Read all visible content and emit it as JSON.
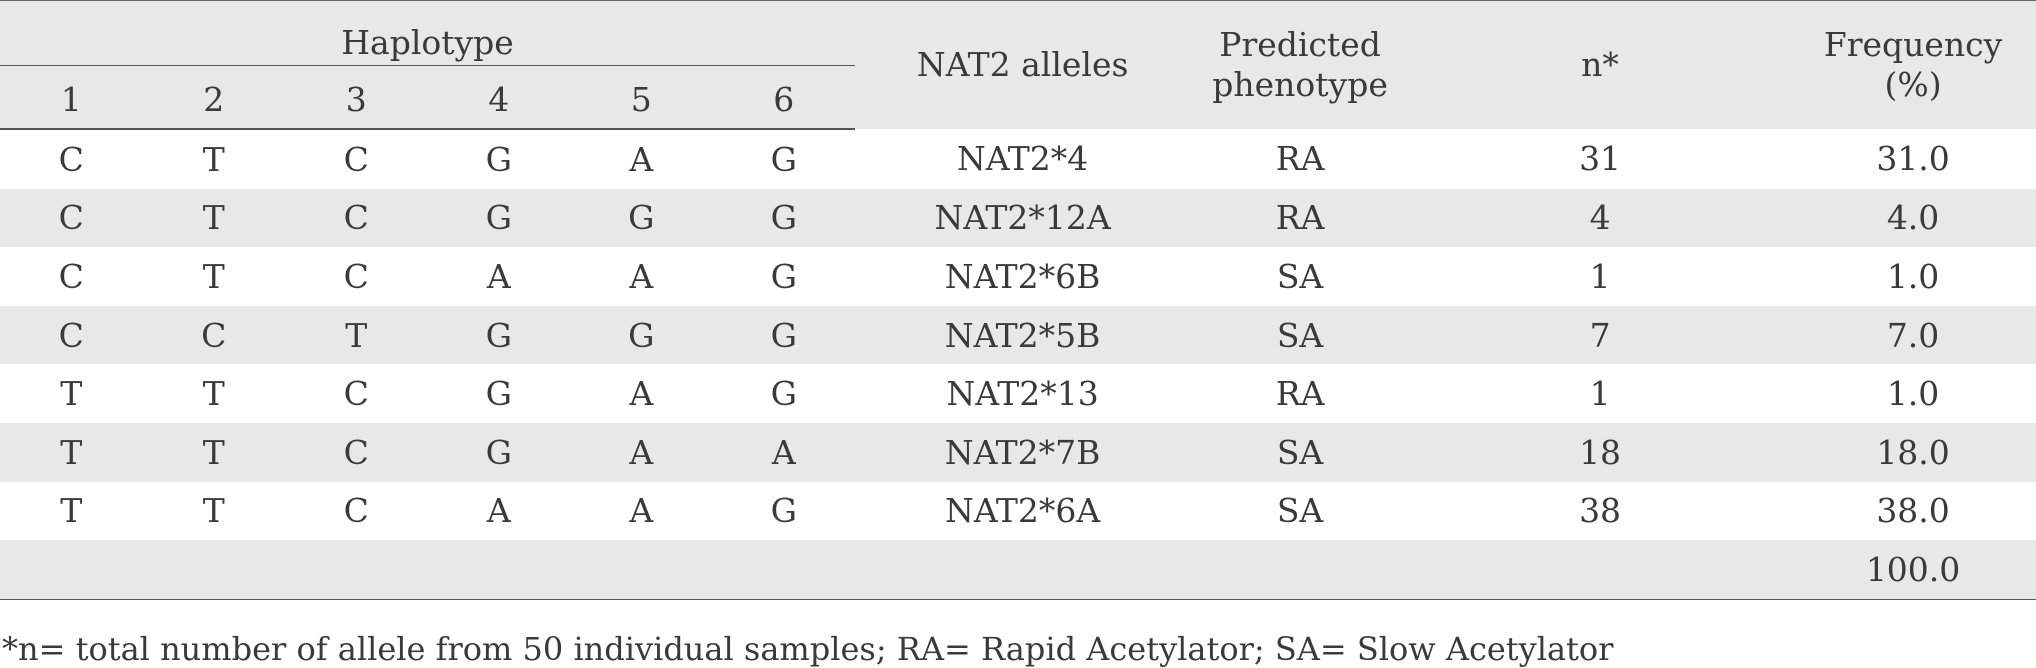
{
  "table": {
    "group_header": "Haplotype",
    "haplotype_columns": [
      "1",
      "2",
      "3",
      "4",
      "5",
      "6"
    ],
    "col_alleles": "NAT2 alleles",
    "col_phenotype_line1": "Predicted",
    "col_phenotype_line2": "phenotype",
    "col_n": "n*",
    "col_frequency": "Frequency (%)",
    "rows": [
      {
        "h": [
          "C",
          "T",
          "C",
          "G",
          "A",
          "G"
        ],
        "allele": "NAT2*4",
        "phenotype": "RA",
        "n": "31",
        "freq": "31.0"
      },
      {
        "h": [
          "C",
          "T",
          "C",
          "G",
          "G",
          "G"
        ],
        "allele": "NAT2*12A",
        "phenotype": "RA",
        "n": "4",
        "freq": "4.0"
      },
      {
        "h": [
          "C",
          "T",
          "C",
          "A",
          "A",
          "G"
        ],
        "allele": "NAT2*6B",
        "phenotype": "SA",
        "n": "1",
        "freq": "1.0"
      },
      {
        "h": [
          "C",
          "C",
          "T",
          "G",
          "G",
          "G"
        ],
        "allele": "NAT2*5B",
        "phenotype": "SA",
        "n": "7",
        "freq": "7.0"
      },
      {
        "h": [
          "T",
          "T",
          "C",
          "G",
          "A",
          "G"
        ],
        "allele": "NAT2*13",
        "phenotype": "RA",
        "n": "1",
        "freq": "1.0"
      },
      {
        "h": [
          "T",
          "T",
          "C",
          "G",
          "A",
          "A"
        ],
        "allele": "NAT2*7B",
        "phenotype": "SA",
        "n": "18",
        "freq": "18.0"
      },
      {
        "h": [
          "T",
          "T",
          "C",
          "A",
          "A",
          "G"
        ],
        "allele": "NAT2*6A",
        "phenotype": "SA",
        "n": "38",
        "freq": "38.0"
      }
    ],
    "total_frequency": "100.0"
  },
  "footnote": "*n= total number of allele from 50 individual samples; RA= Rapid Acetylator; SA= Slow Acetylator"
}
